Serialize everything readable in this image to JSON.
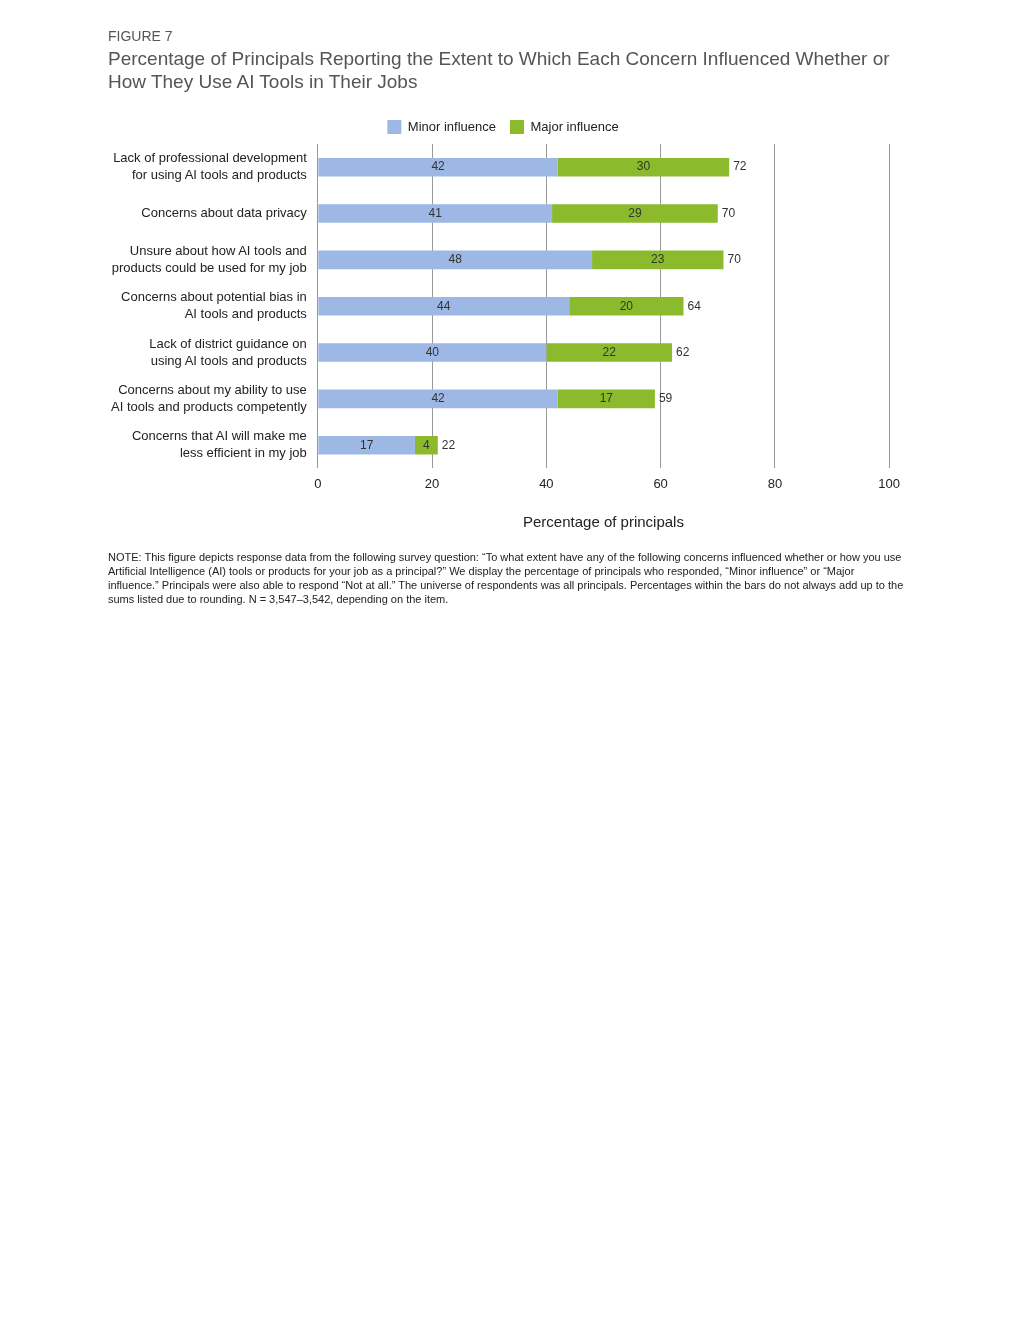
{
  "chart_data": {
    "type": "bar",
    "orientation": "horizontal",
    "stacked": true,
    "title": "Percentage of Principals Reporting the Extent to Which Each Concern Influenced Whether or How They Use AI Tools in Their Jobs",
    "xlabel": "Percentage of principals",
    "categories": [
      "Lack of professional development for using AI tools and products",
      "Concerns about data privacy",
      "Unsure about how AI tools and products could be used for my job",
      "Concerns about potential bias in AI tools and products",
      "Lack of district guidance on using AI tools and products",
      "Concerns about my ability to use AI tools and products competently",
      "Concerns that AI will make me less efficient in my job"
    ],
    "series": [
      {
        "name": "Minor influence",
        "color": "#9db8e4",
        "values": [
          42,
          41,
          48,
          44,
          40,
          42,
          17
        ]
      },
      {
        "name": "Major influence",
        "color": "#8bbb2c",
        "values": [
          30,
          29,
          23,
          20,
          22,
          17,
          4
        ]
      }
    ],
    "totals": [
      "72",
      "70",
      "70",
      "64",
      "62",
      "59",
      "22"
    ],
    "data_labels": true,
    "xlim": [
      0,
      100
    ],
    "xticks": [
      0,
      20,
      40,
      60,
      80,
      100
    ],
    "grid": "x",
    "legend": "top",
    "annotations": [
      "FIGURE 7",
      "NOTE: This figure depicts response data from the following survey question: “To what extent have any of the following concerns influenced whether or how you use Artificial Intelligence (AI) tools or products for your job as a principal?” We display the percentage of principals who responded, “Minor influence” or “Major influence.” Principals were also able to respond “Not at all.” The universe of respondents was all principals. Percentages within the bars do not always add up to the sums listed due to rounding. N = 3,547–3,542, depending on the item."
    ]
  }
}
